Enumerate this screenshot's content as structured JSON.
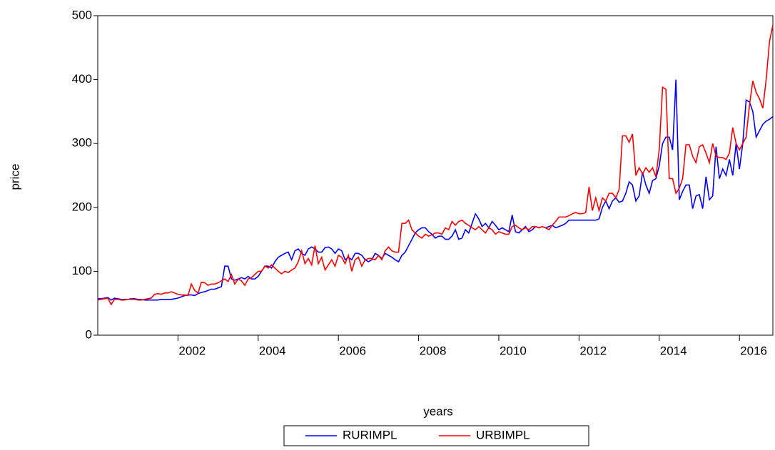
{
  "chart_data": {
    "type": "line",
    "xlabel": "years",
    "ylabel": "price",
    "categories": [
      null,
      null,
      null,
      null,
      null,
      null,
      null,
      null,
      null,
      null,
      null,
      null,
      null,
      null,
      null,
      null,
      null,
      null,
      null,
      null,
      null,
      null,
      null,
      null,
      "2002",
      null,
      null,
      null,
      null,
      null,
      null,
      null,
      null,
      null,
      null,
      null,
      null,
      null,
      null,
      null,
      null,
      null,
      null,
      null,
      null,
      null,
      null,
      null,
      "2004",
      null,
      null,
      null,
      null,
      null,
      null,
      null,
      null,
      null,
      null,
      null,
      null,
      null,
      null,
      null,
      null,
      null,
      null,
      null,
      null,
      null,
      null,
      null,
      "2006",
      null,
      null,
      null,
      null,
      null,
      null,
      null,
      null,
      null,
      null,
      null,
      null,
      null,
      null,
      null,
      null,
      null,
      null,
      null,
      null,
      null,
      null,
      null,
      "2008",
      null,
      null,
      null,
      null,
      null,
      null,
      null,
      null,
      null,
      null,
      null,
      null,
      null,
      null,
      null,
      null,
      null,
      null,
      null,
      null,
      null,
      null,
      null,
      "2010",
      null,
      null,
      null,
      null,
      null,
      null,
      null,
      null,
      null,
      null,
      null,
      null,
      null,
      null,
      null,
      null,
      null,
      null,
      null,
      null,
      null,
      null,
      null,
      "2012",
      null,
      null,
      null,
      null,
      null,
      null,
      null,
      null,
      null,
      null,
      null,
      null,
      null,
      null,
      null,
      null,
      null,
      null,
      null,
      null,
      null,
      null,
      null,
      "2014",
      null,
      null,
      null,
      null,
      null,
      null,
      null,
      null,
      null,
      null,
      null,
      null,
      null,
      null,
      null,
      null,
      null,
      null,
      null,
      null,
      null,
      null,
      null,
      "2016",
      null,
      null,
      null,
      null,
      null,
      null,
      null,
      null,
      null,
      null
    ],
    "series": [
      {
        "name": "RURIMPL",
        "color": "#0000ff",
        "values": [
          57,
          57,
          58,
          59,
          55,
          58,
          57,
          56,
          56,
          56,
          57,
          57,
          56,
          56,
          55,
          55,
          55,
          55,
          55,
          56,
          56,
          56,
          56,
          57,
          58,
          60,
          62,
          63,
          63,
          62,
          65,
          67,
          68,
          70,
          72,
          72,
          74,
          76,
          108,
          108,
          88,
          86,
          88,
          90,
          88,
          92,
          88,
          88,
          92,
          100,
          108,
          108,
          105,
          115,
          122,
          125,
          128,
          130,
          118,
          132,
          135,
          128,
          125,
          135,
          138,
          135,
          130,
          130,
          137,
          138,
          135,
          128,
          135,
          132,
          118,
          122,
          118,
          128,
          128,
          125,
          118,
          115,
          118,
          128,
          125,
          120,
          128,
          125,
          122,
          118,
          115,
          125,
          130,
          140,
          150,
          160,
          165,
          168,
          168,
          162,
          158,
          152,
          155,
          155,
          150,
          150,
          155,
          165,
          150,
          152,
          165,
          160,
          175,
          190,
          182,
          170,
          175,
          168,
          178,
          172,
          165,
          168,
          165,
          162,
          188,
          162,
          160,
          165,
          170,
          162,
          165,
          170,
          168,
          170,
          168,
          170,
          172,
          168,
          170,
          172,
          175,
          180,
          180,
          180,
          180,
          180,
          180,
          180,
          180,
          180,
          182,
          200,
          210,
          198,
          210,
          215,
          208,
          210,
          222,
          240,
          235,
          210,
          218,
          255,
          235,
          222,
          242,
          245,
          265,
          300,
          310,
          310,
          290,
          400,
          212,
          225,
          235,
          235,
          198,
          218,
          220,
          198,
          248,
          212,
          218,
          295,
          245,
          260,
          250,
          275,
          250,
          300,
          260,
          300,
          368,
          365,
          350,
          310,
          320,
          330,
          335,
          338,
          342
        ]
      },
      {
        "name": "URBIMPL",
        "color": "#ff0000",
        "values": [
          55,
          56,
          57,
          58,
          48,
          56,
          56,
          55,
          55,
          56,
          56,
          56,
          55,
          55,
          56,
          57,
          58,
          64,
          65,
          64,
          66,
          66,
          68,
          66,
          64,
          63,
          63,
          62,
          80,
          70,
          66,
          83,
          82,
          78,
          80,
          80,
          82,
          85,
          88,
          84,
          95,
          80,
          88,
          85,
          78,
          88,
          90,
          95,
          100,
          100,
          108,
          105,
          110,
          105,
          100,
          96,
          100,
          98,
          102,
          105,
          115,
          132,
          112,
          120,
          110,
          140,
          112,
          122,
          102,
          110,
          118,
          108,
          125,
          122,
          112,
          125,
          100,
          118,
          122,
          108,
          118,
          120,
          120,
          118,
          125,
          118,
          132,
          138,
          132,
          130,
          130,
          175,
          175,
          180,
          165,
          160,
          155,
          152,
          158,
          155,
          157,
          160,
          160,
          158,
          168,
          165,
          178,
          172,
          178,
          180,
          175,
          172,
          168,
          165,
          170,
          165,
          160,
          168,
          165,
          158,
          162,
          160,
          158,
          158,
          170,
          172,
          168,
          165,
          168,
          165,
          170,
          170,
          168,
          170,
          168,
          165,
          172,
          178,
          185,
          185,
          185,
          187,
          190,
          192,
          190,
          190,
          192,
          232,
          195,
          215,
          195,
          215,
          210,
          222,
          222,
          215,
          228,
          312,
          312,
          302,
          315,
          250,
          262,
          252,
          262,
          255,
          262,
          248,
          290,
          388,
          385,
          245,
          245,
          222,
          230,
          245,
          298,
          298,
          280,
          270,
          295,
          298,
          285,
          270,
          300,
          280,
          278,
          278,
          275,
          285,
          325,
          300,
          290,
          300,
          310,
          360,
          398,
          380,
          370,
          355,
          400,
          460,
          485
        ]
      }
    ],
    "ylim": [
      0,
      500
    ],
    "yticks": [
      0,
      100,
      200,
      300,
      400,
      500
    ]
  }
}
